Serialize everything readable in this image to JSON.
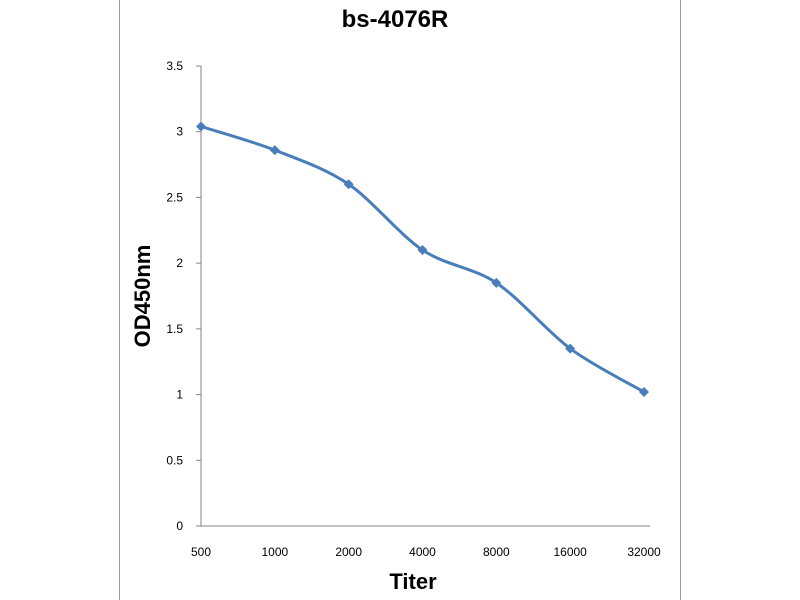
{
  "chart_data": {
    "type": "line",
    "title": "bs-4076R",
    "xlabel": "Titer",
    "ylabel": "OD450nm",
    "categories": [
      "500",
      "1000",
      "2000",
      "4000",
      "8000",
      "16000",
      "32000"
    ],
    "series": [
      {
        "values": [
          3.04,
          2.86,
          2.6,
          2.1,
          1.85,
          1.35,
          1.02
        ]
      }
    ],
    "ylim": [
      0,
      3.5
    ],
    "yticks": [
      "0",
      "0.5",
      "1",
      "1.5",
      "2",
      "2.5",
      "3",
      "3.5"
    ],
    "grid": false,
    "legend": "none",
    "line_color": "#4a7ebb"
  }
}
